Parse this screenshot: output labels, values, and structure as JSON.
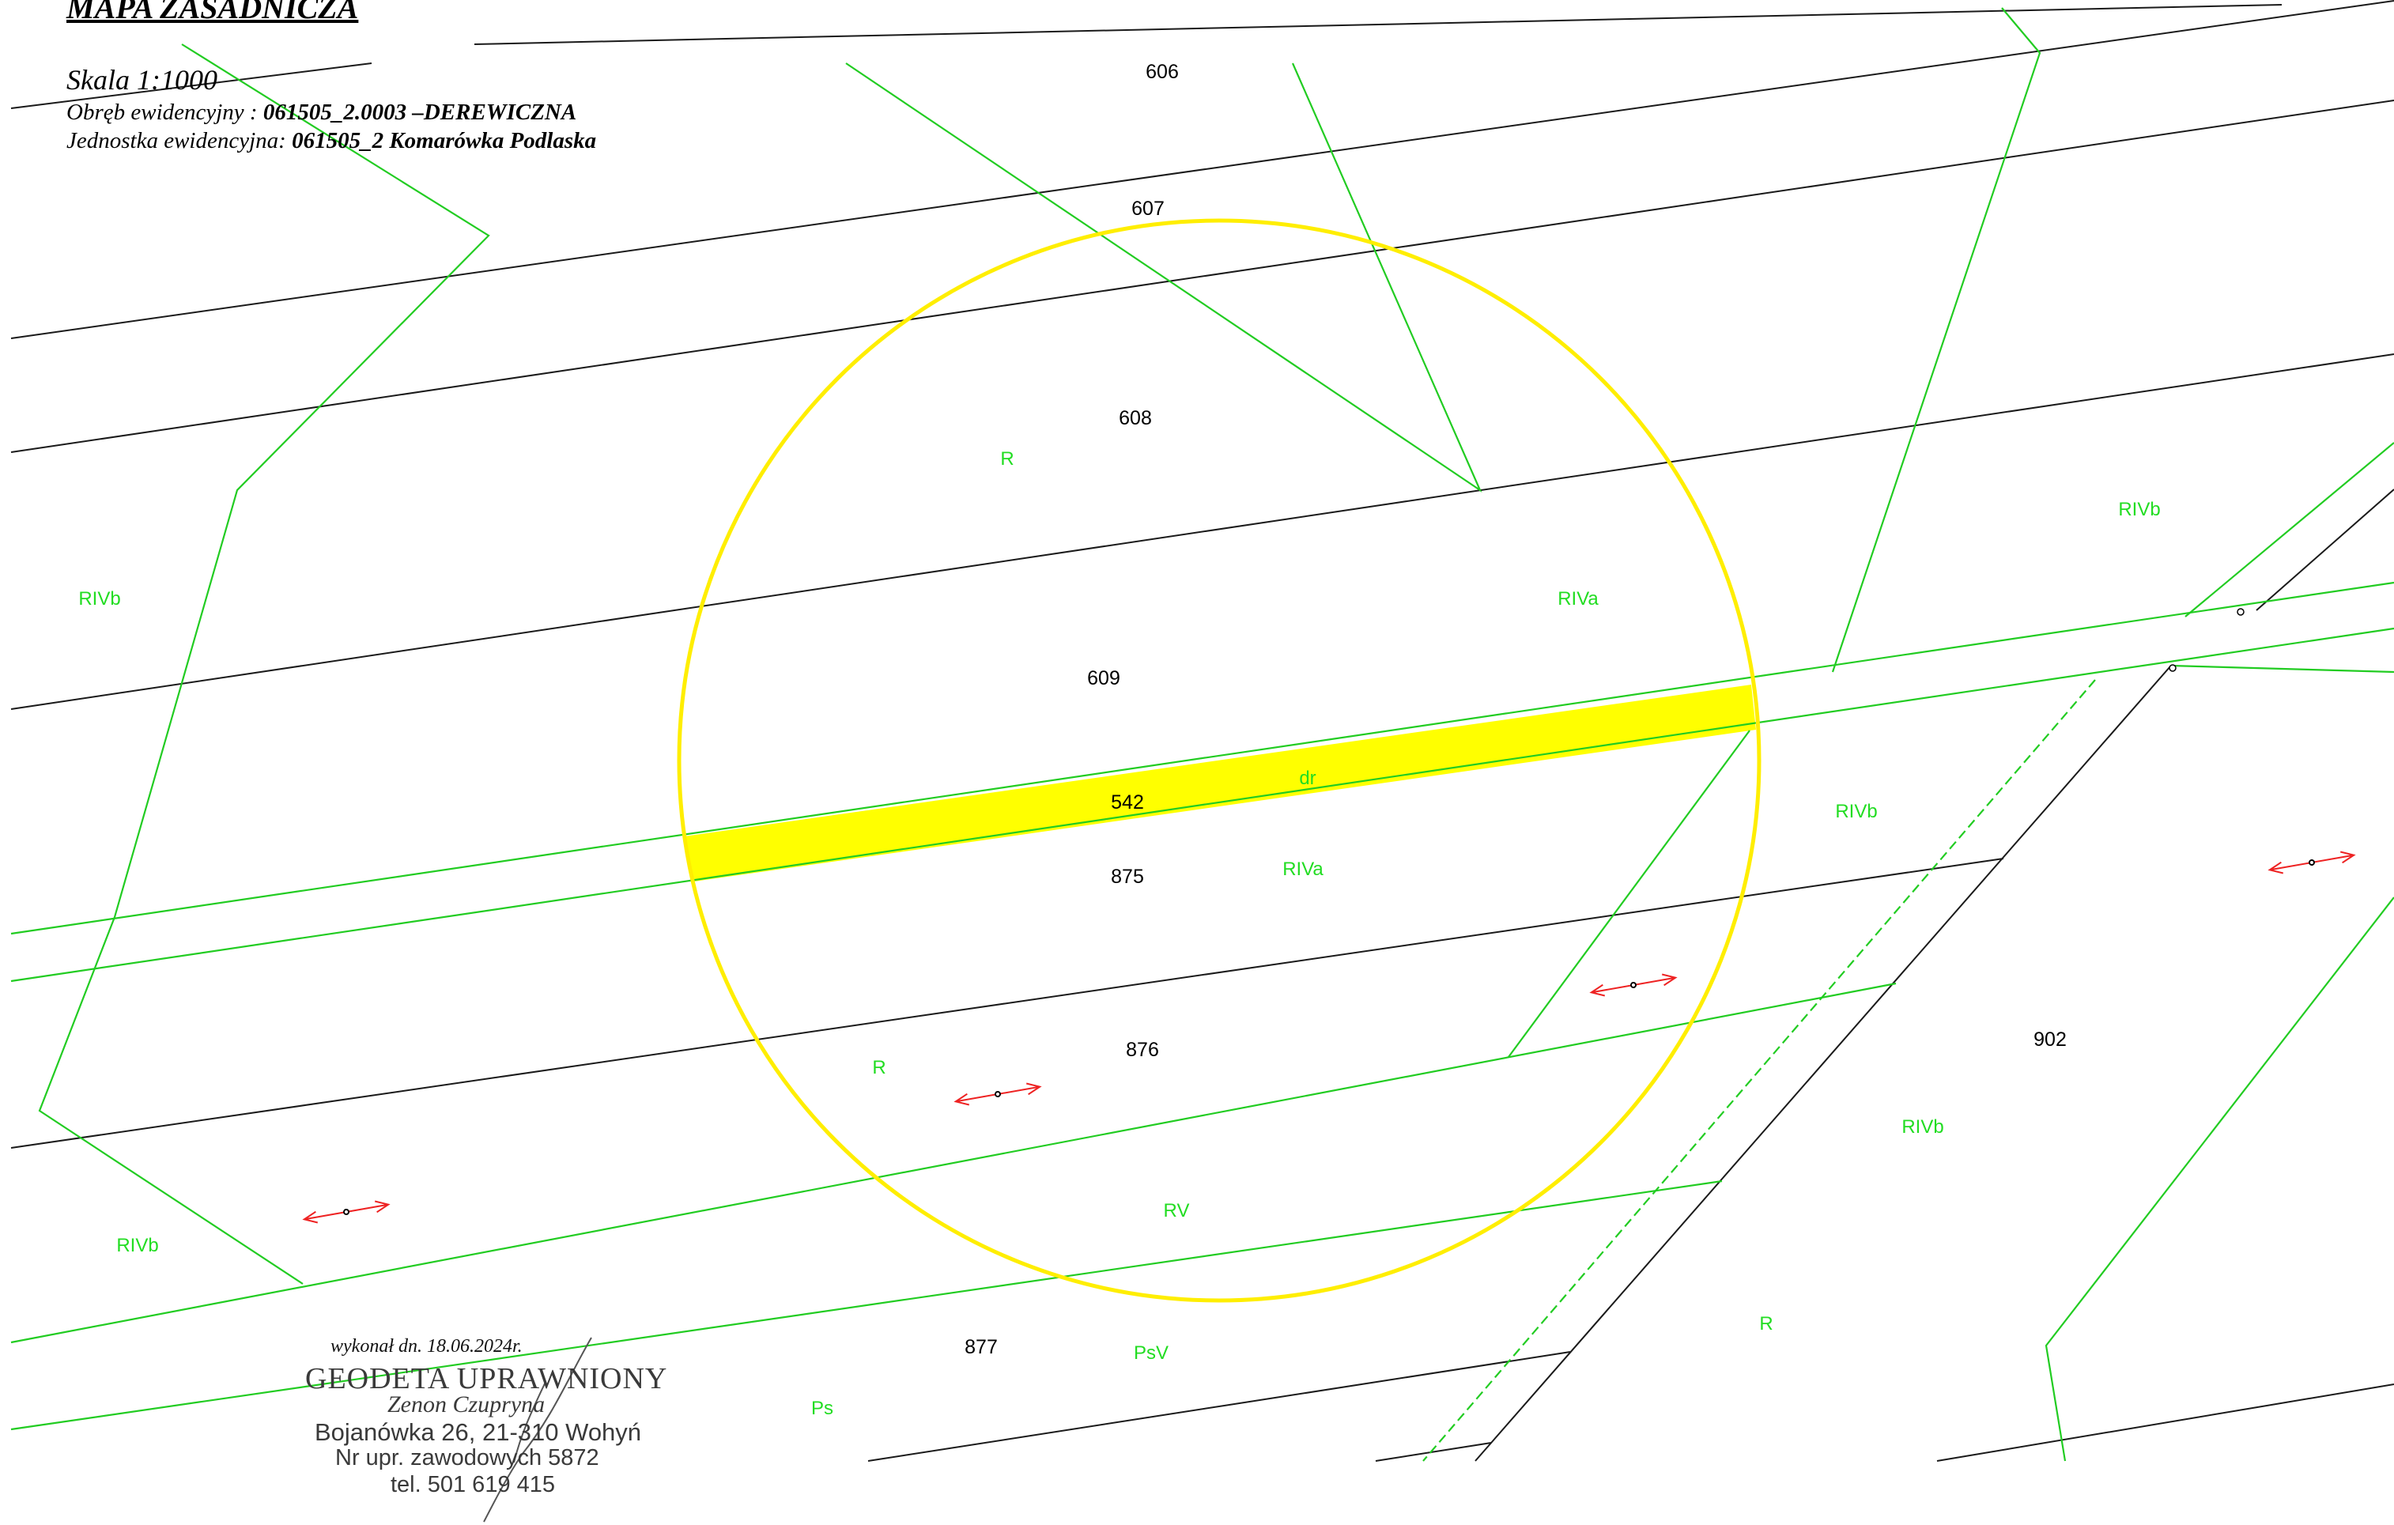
{
  "header": {
    "title": "MAPA ZASADNICZA",
    "scale": "Skala 1:1000",
    "obreb_label": "Obręb ewidencyjny : ",
    "obreb_value": "061505_2.0003 –DEREWICZNA",
    "jednostka_label": "Jednostka ewidencyjna: ",
    "jednostka_value": "061505_2 Komarówka Podlaska"
  },
  "parcel_numbers": [
    "606",
    "607",
    "608",
    "609",
    "542",
    "875",
    "876",
    "877",
    "902"
  ],
  "land_use_labels": [
    "R",
    "RIVb",
    "RIVa",
    "dr",
    "RIVa",
    "RIVb",
    "RIVb",
    "R",
    "RV",
    "RIVb",
    "RIVb",
    "R",
    "PsV",
    "Ps"
  ],
  "stamp": {
    "date": "wykonał dn. 18.06.2024r.",
    "title": "GEODETA UPRAWNIONY",
    "name": "Zenon Czupryna",
    "address": "Bojanówka 26, 21-310 Wohyń",
    "license": "Nr upr. zawodowych 5872",
    "phone": "tel. 501 619 415"
  },
  "colors": {
    "parcel_boundary": "#1a1a1a",
    "landuse_boundary": "#22cc22",
    "highlight_fill": "#ffff00",
    "highlight_circle": "#ffee00",
    "landuse_text": "#22dd22",
    "parcel_text": "#000000",
    "drainage_arrow": "#ee2222"
  }
}
